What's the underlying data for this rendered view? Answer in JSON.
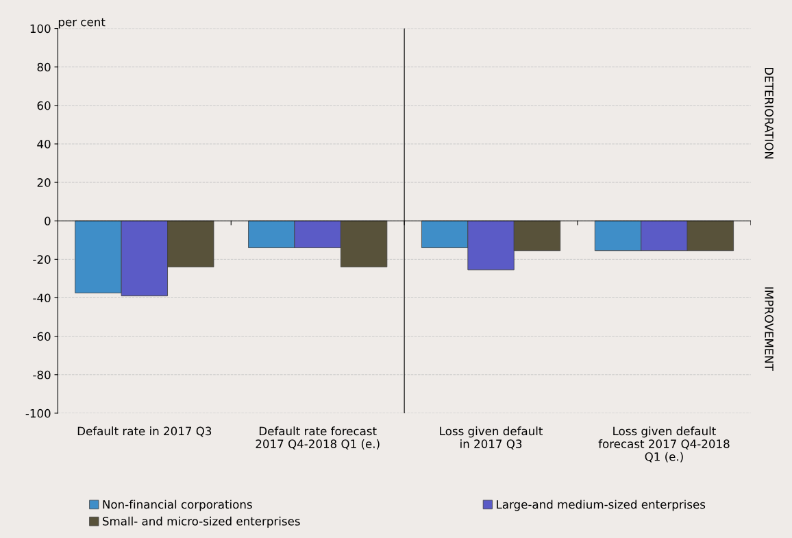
{
  "chart_data": {
    "type": "bar",
    "ylabel": "per cent",
    "categories": [
      "Default rate in 2017 Q3",
      "Default rate forecast\n2017 Q4-2018 Q1 (e.)",
      "Loss given default\nin 2017 Q3",
      "Loss given default\nforecast 2017 Q4-2018\nQ1 (e.)"
    ],
    "series": [
      {
        "name": "Non-financial corporations",
        "color": "#3f8ec8",
        "values": [
          -37.5,
          -14,
          -14,
          -15.5
        ]
      },
      {
        "name": "Large-and medium-sized enterprises",
        "color": "#5b5bc6",
        "values": [
          -39,
          -14,
          -25.5,
          -15.5
        ]
      },
      {
        "name": "Small- and micro-sized enterprises",
        "color": "#58523a",
        "values": [
          -24,
          -24,
          -15.5,
          -15.5
        ]
      }
    ],
    "ylim": [
      -100,
      100
    ],
    "yticks": [
      -100,
      -80,
      -60,
      -40,
      -20,
      0,
      20,
      40,
      60,
      80,
      100
    ],
    "grid": "y",
    "legend": "bottom",
    "annotations": [
      "DETERIORATION",
      "IMPROVEMENT"
    ]
  }
}
